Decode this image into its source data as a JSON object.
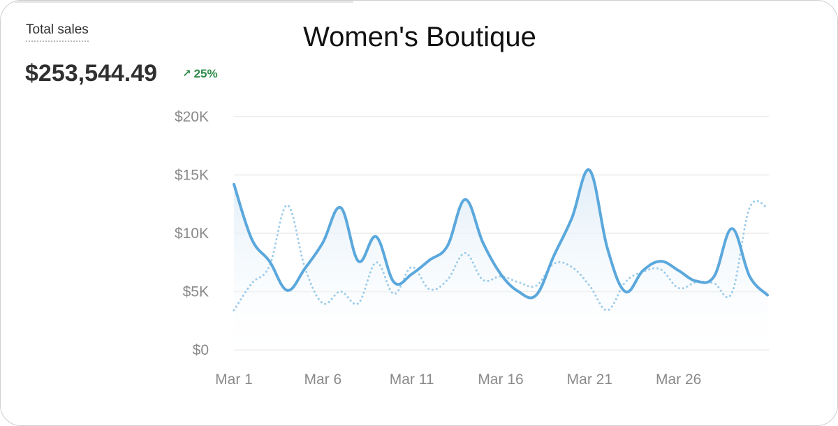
{
  "card": {
    "metric_label": "Total sales",
    "metric_value": "$253,544.49",
    "delta": "25%",
    "delta_icon": "arrow-up-right-icon",
    "title": "Women's Boutique"
  },
  "colors": {
    "primary_line": "#5ba8dc",
    "comparison_line": "#9ccbea",
    "area_fill": "#e8f2fa",
    "grid": "#ececec",
    "tick_text": "#8a8a8a",
    "delta_positive": "#2e8b4a"
  },
  "chart_data": {
    "type": "line",
    "title": "Women's Boutique",
    "xlabel": "",
    "ylabel": "",
    "x": [
      "Mar 1",
      "Mar 2",
      "Mar 3",
      "Mar 4",
      "Mar 5",
      "Mar 6",
      "Mar 7",
      "Mar 8",
      "Mar 9",
      "Mar 10",
      "Mar 11",
      "Mar 12",
      "Mar 13",
      "Mar 14",
      "Mar 15",
      "Mar 16",
      "Mar 17",
      "Mar 18",
      "Mar 19",
      "Mar 20",
      "Mar 21",
      "Mar 22",
      "Mar 23",
      "Mar 24",
      "Mar 25",
      "Mar 26",
      "Mar 27",
      "Mar 28",
      "Mar 29",
      "Mar 30",
      "Mar 31"
    ],
    "x_tick_labels": [
      "Mar 1",
      "Mar 6",
      "Mar 11",
      "Mar 16",
      "Mar 21",
      "Mar 26"
    ],
    "y_tick_labels": [
      "$0",
      "$5K",
      "$10K",
      "$15K",
      "$20K"
    ],
    "y_ticks": [
      0,
      5000,
      10000,
      15000,
      20000
    ],
    "ylim": [
      0,
      20000
    ],
    "grid": true,
    "series": [
      {
        "style": "solid-area",
        "values": [
          14200,
          9500,
          7600,
          5100,
          7000,
          9200,
          12200,
          7600,
          9700,
          5800,
          6500,
          7700,
          8900,
          12900,
          9200,
          6500,
          5000,
          4700,
          8100,
          11300,
          15400,
          8700,
          5000,
          6800,
          7600,
          6800,
          5900,
          6300,
          10400,
          6300,
          4700
        ]
      },
      {
        "style": "dotted",
        "values": [
          3400,
          5700,
          7200,
          12400,
          7000,
          4000,
          5000,
          4000,
          7500,
          4800,
          7100,
          5200,
          6000,
          8300,
          6000,
          6300,
          5800,
          5500,
          7400,
          7100,
          5500,
          3400,
          5800,
          6700,
          6900,
          5300,
          5800,
          5700,
          4900,
          12200,
          12200
        ]
      }
    ]
  }
}
